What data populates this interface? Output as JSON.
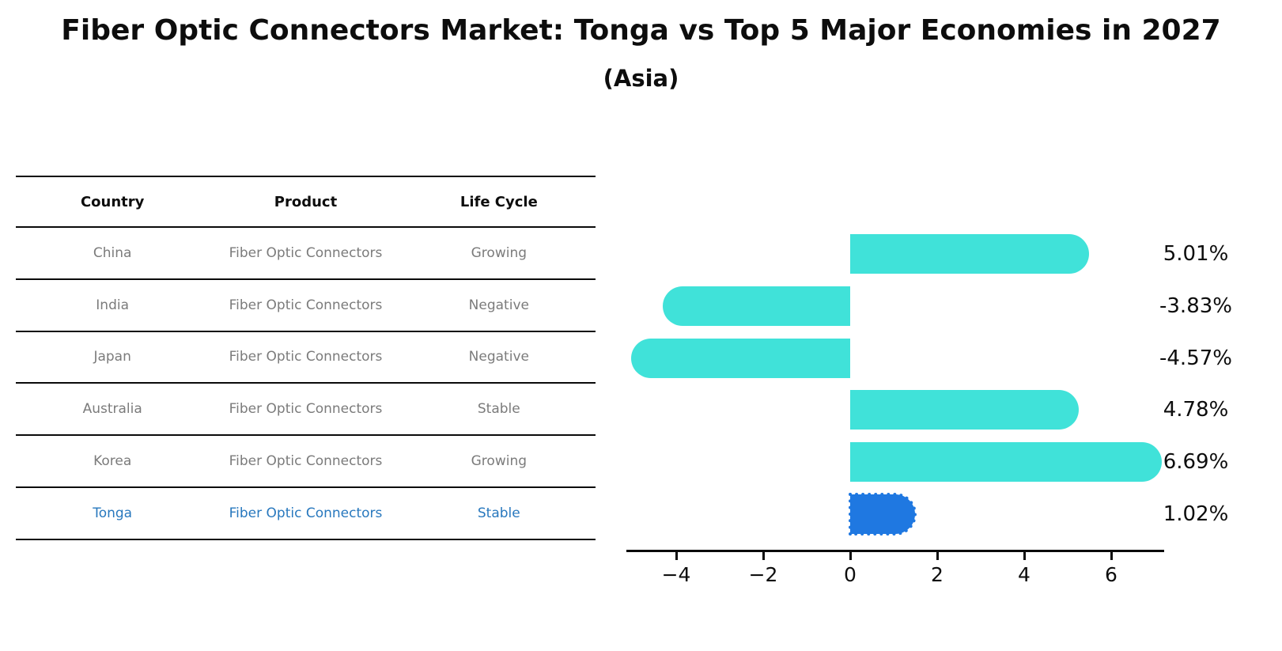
{
  "title": "Fiber Optic Connectors Market: Tonga vs Top 5 Major Economies in 2027",
  "subtitle": "(Asia)",
  "table": {
    "headers": [
      "Country",
      "Product",
      "Life Cycle"
    ],
    "rows": [
      {
        "country": "China",
        "product": "Fiber Optic Connectors",
        "life_cycle": "Growing",
        "highlight": false
      },
      {
        "country": "India",
        "product": "Fiber Optic Connectors",
        "life_cycle": "Negative",
        "highlight": false
      },
      {
        "country": "Japan",
        "product": "Fiber Optic Connectors",
        "life_cycle": "Negative",
        "highlight": false
      },
      {
        "country": "Australia",
        "product": "Fiber Optic Connectors",
        "life_cycle": "Stable",
        "highlight": false
      },
      {
        "country": "Korea",
        "product": "Fiber Optic Connectors",
        "life_cycle": "Growing",
        "highlight": false
      },
      {
        "country": "Tonga",
        "product": "Fiber Optic Connectors",
        "life_cycle": "Stable",
        "highlight": true
      }
    ]
  },
  "chart_data": {
    "type": "bar",
    "orientation": "horizontal",
    "title": "",
    "categories": [
      "China",
      "India",
      "Japan",
      "Australia",
      "Korea",
      "Tonga"
    ],
    "values": [
      5.01,
      -3.83,
      -4.57,
      4.78,
      6.69,
      1.02
    ],
    "value_labels": [
      "5.01%",
      "-3.83%",
      "-4.57%",
      "4.78%",
      "6.69%",
      "1.02%"
    ],
    "x_tick_values": [
      -4,
      -2,
      0,
      2,
      4,
      6
    ],
    "x_tick_labels": [
      "−4",
      "−2",
      "0",
      "2",
      "4",
      "6"
    ],
    "xlim": [
      -5.15,
      7.2
    ],
    "grid": false,
    "legend": false,
    "highlight_index": 5,
    "bar_color": "#40e2d9",
    "highlight_color": "#1f78e1",
    "highlight_text_color": "#2878be",
    "row_text_color": "#7b7b7b"
  }
}
